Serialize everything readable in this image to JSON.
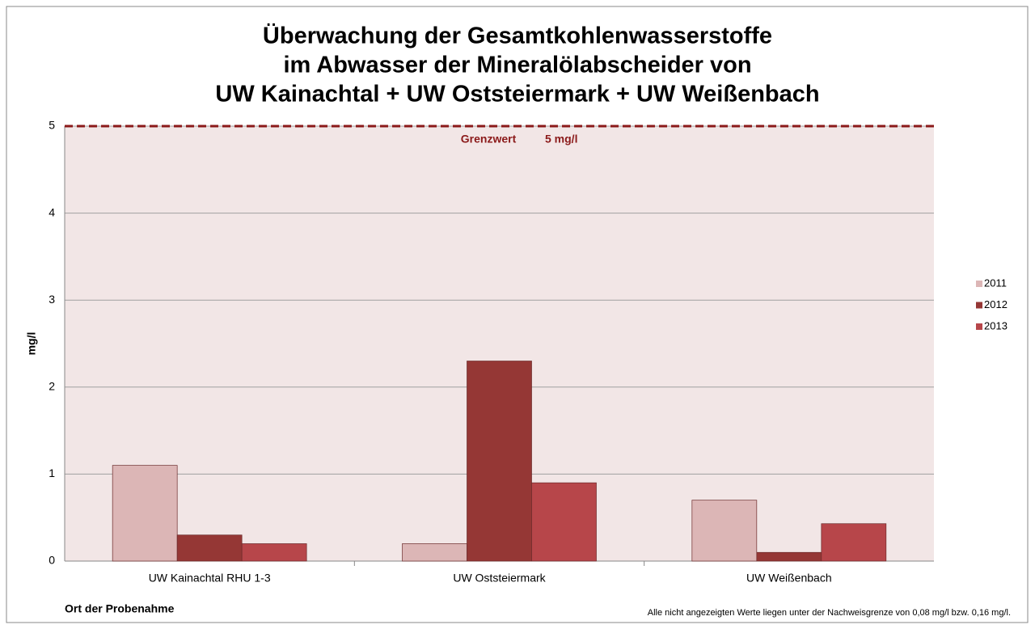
{
  "chart_data": {
    "type": "bar",
    "title": [
      "Überwachung der Gesamtkohlenwasserstoffe",
      "im Abwasser der Mineralölabscheider von",
      "UW Kainachtal + UW Oststeiermark + UW Weißenbach"
    ],
    "y_label": "mg/l",
    "x_label": "Ort der Probenahme",
    "footnote": "Alle nicht angezeigten Werte liegen unter der Nachweisgrenze von 0,08 mg/l bzw. 0,16 mg/l.",
    "categories": [
      "UW Kainachtal RHU 1-3",
      "UW Oststeiermark",
      "UW Weißenbach"
    ],
    "series": [
      {
        "name": "2011",
        "color": "#dcb6b6",
        "values": [
          1.1,
          0.2,
          0.7
        ]
      },
      {
        "name": "2012",
        "color": "#953735",
        "values": [
          0.3,
          2.3,
          0.1
        ]
      },
      {
        "name": "2013",
        "color": "#b7464a",
        "values": [
          0.2,
          0.9,
          0.43
        ]
      }
    ],
    "threshold": {
      "value": 5,
      "label": "Grenzwert",
      "value_label": "5 mg/l",
      "color": "#8b1a1a"
    },
    "ylim": [
      0,
      5
    ],
    "yticks": [
      0,
      1,
      2,
      3,
      4,
      5
    ],
    "grid": true,
    "legend": "right",
    "plot_background": "#f2e6e6"
  }
}
